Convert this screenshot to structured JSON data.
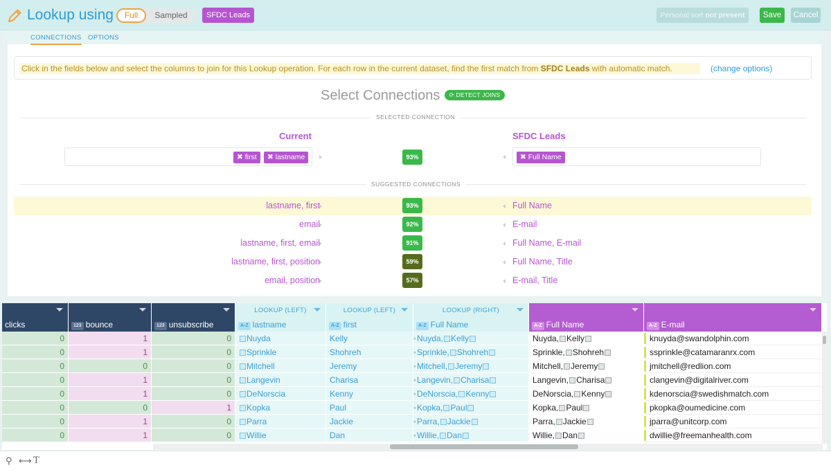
{
  "header": {
    "title": "Lookup using",
    "mode_full": "Full",
    "mode_sampled": "Sampled",
    "source": "SFDC Leads",
    "sort_prefix": "Personal sort",
    "sort_suffix": "not present",
    "save": "Save",
    "cancel": "Cancel"
  },
  "tabs": [
    "CONNECTIONS",
    "OPTIONS"
  ],
  "info": {
    "text1": "Click in the fields below and select the columns to join for this Lookup operation.    For each row in the current dataset, find the first match from ",
    "source": "SFDC Leads",
    "text2": " with automatic match.",
    "link": "(change options)"
  },
  "connections": {
    "title": "Select Connections",
    "detect": "DETECT JOINS",
    "selected_label": "SELECTED CONNECTION",
    "suggested_label": "SUGGESTED CONNECTIONS",
    "current_head": "Current",
    "target_head": "SFDC Leads",
    "selected": {
      "left_chips": [
        "first",
        "lastname"
      ],
      "right_chips": [
        "Full Name"
      ],
      "pct": "93%"
    },
    "suggested": [
      {
        "left": "lastname, first",
        "pct": "93%",
        "right": "Full Name",
        "color": "#3bb84a"
      },
      {
        "left": "email",
        "pct": "92%",
        "right": "E-mail",
        "color": "#3bb84a"
      },
      {
        "left": "lastname, first, email",
        "pct": "91%",
        "right": "Full Name, E-mail",
        "color": "#3bb84a"
      },
      {
        "left": "lastname, first, position",
        "pct": "59%",
        "right": "Full Name, Title",
        "color": "#566b1c"
      },
      {
        "left": "email, position",
        "pct": "57%",
        "right": "E-mail, Title",
        "color": "#566b1c"
      }
    ]
  },
  "grid": {
    "columns": [
      {
        "name": "clicks",
        "badge": "",
        "sub": ""
      },
      {
        "name": "bounce",
        "badge": "123",
        "sub": ""
      },
      {
        "name": "unsubscribe",
        "badge": "123",
        "sub": ""
      },
      {
        "name": "lastname",
        "badge": "A-Z",
        "sub": "LOOKUP (LEFT)"
      },
      {
        "name": "first",
        "badge": "A-Z",
        "sub": "LOOKUP (LEFT)"
      },
      {
        "name": "Full Name",
        "badge": "A-Z",
        "sub": "LOOKUP (RIGHT)"
      },
      {
        "name": "Full Name",
        "badge": "A-Z",
        "sub": ""
      },
      {
        "name": "E-mail",
        "badge": "A-Z",
        "sub": ""
      }
    ],
    "rows": [
      {
        "clicks": "0",
        "bounce": "1",
        "unsub": "0",
        "last": "Nuyda",
        "first": "Kelly",
        "email": "knuyda@swandolphin.com"
      },
      {
        "clicks": "0",
        "bounce": "1",
        "unsub": "0",
        "last": "Sprinkle",
        "first": "Shohreh",
        "email": "ssprinkle@catamaranrx.com"
      },
      {
        "clicks": "0",
        "bounce": "0",
        "unsub": "0",
        "last": "Mitchell",
        "first": "Jeremy",
        "email": "jmitchell@redlion.com"
      },
      {
        "clicks": "0",
        "bounce": "1",
        "unsub": "0",
        "last": "Langevin",
        "first": "Charisa",
        "email": "clangevin@digitalriver.com"
      },
      {
        "clicks": "0",
        "bounce": "1",
        "unsub": "0",
        "last": "DeNorscia",
        "first": "Kenny",
        "email": "kdenorscia@swedishmatch.com"
      },
      {
        "clicks": "0",
        "bounce": "0",
        "unsub": "1",
        "last": "Kopka",
        "first": "Paul",
        "email": "pkopka@oumedicine.com"
      },
      {
        "clicks": "0",
        "bounce": "1",
        "unsub": "0",
        "last": "Parra",
        "first": "Jackie",
        "email": "jparra@unitcorp.com"
      },
      {
        "clicks": "0",
        "bounce": "1",
        "unsub": "0",
        "last": "Willie",
        "first": "Dan",
        "email": "dwillie@freemanhealth.com"
      }
    ]
  }
}
